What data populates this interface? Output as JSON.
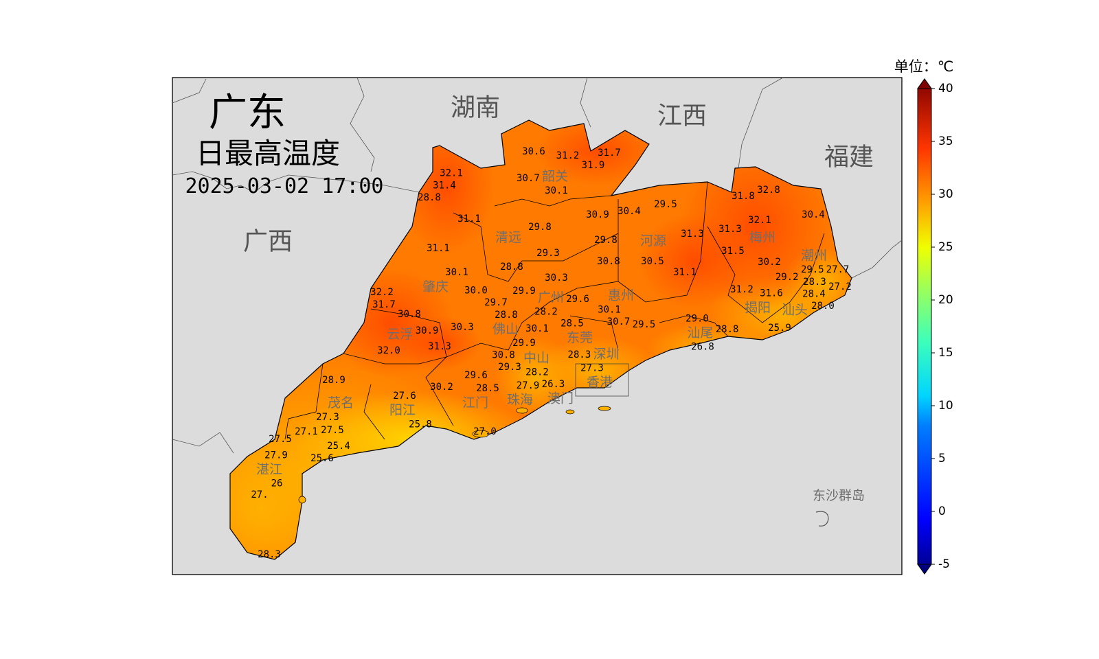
{
  "map": {
    "title": "广东",
    "subtitle": "日最高温度",
    "datetime": "2025-03-02 17:00",
    "provinces": [
      "湖南",
      "江西",
      "福建",
      "广西"
    ],
    "cities": [
      "韶关",
      "清远",
      "河源",
      "梅州",
      "潮州",
      "肇庆",
      "广州",
      "惠州",
      "揭阳",
      "汕头",
      "佛山",
      "云浮",
      "东莞",
      "汕尾",
      "深圳",
      "中山",
      "香港",
      "珠海",
      "澳门",
      "江门",
      "阳江",
      "茂名",
      "湛江"
    ],
    "islands_label": "东沙群岛",
    "station_values": [
      "30.6",
      "31.2",
      "31.7",
      "31.9",
      "30.7",
      "30.1",
      "32.1",
      "31.4",
      "28.8",
      "31.1",
      "29.8",
      "30.9",
      "30.4",
      "29.5",
      "32.8",
      "31.8",
      "30.4",
      "31.1",
      "29.3",
      "29.8",
      "31.3",
      "31.3",
      "32.1",
      "31.5",
      "28.8",
      "30.8",
      "30.5",
      "31.1",
      "30.2",
      "29.2",
      "29.5",
      "27.7",
      "28.3",
      "28.0",
      "27.2",
      "28.4",
      "30.1",
      "30.3",
      "32.2",
      "31.7",
      "30.0",
      "29.9",
      "29.6",
      "31.2",
      "31.6",
      "29.7",
      "28.8",
      "28.2",
      "30.1",
      "30.7",
      "30.8",
      "30.9",
      "30.3",
      "30.1",
      "28.5",
      "29.5",
      "29.0",
      "28.8",
      "25.9",
      "32.0",
      "31.3",
      "29.9",
      "30.8",
      "26.8",
      "28.3",
      "27.3",
      "29.3",
      "28.2",
      "28.9",
      "29.6",
      "30.2",
      "28.5",
      "27.9",
      "26.3",
      "27.6",
      "27.3",
      "25.8",
      "27.1",
      "27.5",
      "27.5",
      "27.0",
      "25.4",
      "27.9",
      "25.6",
      "26",
      "27.",
      "28.3"
    ],
    "background_color": "#dcdcdc"
  },
  "colorbar": {
    "unit_label": "单位：℃",
    "min": -5,
    "max": 40,
    "extend": "both",
    "colormap": "jet",
    "ticks": [
      "40",
      "35",
      "30",
      "25",
      "20",
      "15",
      "10",
      "5",
      "0",
      "-5"
    ]
  }
}
